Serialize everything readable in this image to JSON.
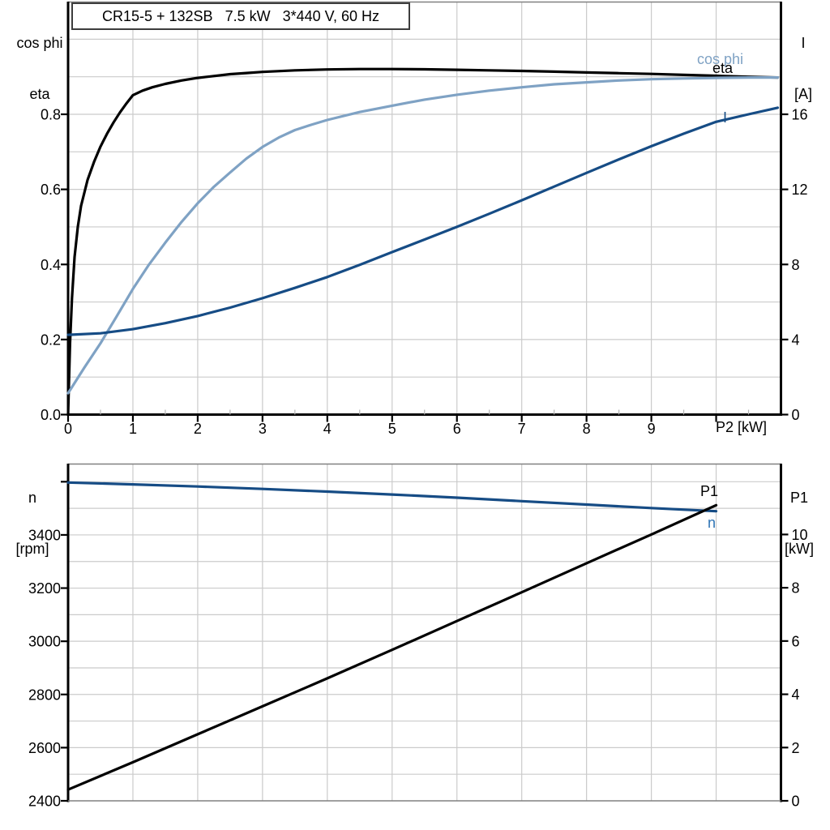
{
  "title_box": {
    "text": "CR15-5 + 132SB   7.5 kW   3*440 V, 60 Hz"
  },
  "colors": {
    "black": "#000000",
    "navy": "#164C85",
    "steel": "#7FA2C4",
    "label_blue": "#2E74B5",
    "grid": "#CBCBCB",
    "border_gray": "#808080"
  },
  "chart_data": [
    {
      "id": "upper",
      "type": "line",
      "title": "CR15-5 + 132SB   7.5 kW   3*440 V, 60 Hz",
      "x_axis": {
        "label": "P2 [kW]",
        "range": [
          0,
          11
        ],
        "tick_values": [
          0,
          1,
          2,
          3,
          4,
          5,
          6,
          7,
          8,
          9,
          10
        ],
        "tick_labels": [
          "0",
          "1",
          "2",
          "3",
          "4",
          "5",
          "6",
          "7",
          "8",
          "9",
          ""
        ],
        "minor_tick_step": 0.5,
        "grid_step": 1
      },
      "y_left": {
        "label_lines": [
          "cos phi",
          "eta"
        ],
        "range": [
          0,
          1.098
        ],
        "tick_values": [
          0,
          0.2,
          0.4,
          0.6,
          0.8
        ],
        "tick_labels": [
          "0.0",
          "0.2",
          "0.4",
          "0.6",
          "0.8"
        ],
        "grid_step": 0.1
      },
      "y_right": {
        "label_lines": [
          "I",
          "[A]"
        ],
        "range": [
          0,
          21.96
        ],
        "tick_values": [
          0,
          4,
          8,
          12,
          16
        ],
        "tick_labels": [
          "0",
          "4",
          "8",
          "12",
          "16"
        ]
      },
      "series": [
        {
          "name": "eta",
          "axis": "left",
          "color_key": "black",
          "width": 3.2,
          "points": [
            [
              0,
              0
            ],
            [
              0.03,
              0.19
            ],
            [
              0.06,
              0.31
            ],
            [
              0.1,
              0.42
            ],
            [
              0.15,
              0.5
            ],
            [
              0.2,
              0.556
            ],
            [
              0.3,
              0.625
            ],
            [
              0.4,
              0.673
            ],
            [
              0.5,
              0.714
            ],
            [
              0.6,
              0.748
            ],
            [
              0.7,
              0.778
            ],
            [
              0.8,
              0.805
            ],
            [
              0.9,
              0.829
            ],
            [
              1.0,
              0.851
            ],
            [
              1.15,
              0.863
            ],
            [
              1.3,
              0.872
            ],
            [
              1.5,
              0.881
            ],
            [
              1.75,
              0.89
            ],
            [
              2.0,
              0.897
            ],
            [
              2.25,
              0.902
            ],
            [
              2.5,
              0.907
            ],
            [
              2.75,
              0.91
            ],
            [
              3.0,
              0.913
            ],
            [
              3.5,
              0.917
            ],
            [
              4.0,
              0.9195
            ],
            [
              4.5,
              0.9205
            ],
            [
              5.0,
              0.9205
            ],
            [
              5.5,
              0.9198
            ],
            [
              6.0,
              0.9185
            ],
            [
              6.5,
              0.917
            ],
            [
              7.0,
              0.9155
            ],
            [
              7.5,
              0.9135
            ],
            [
              8.0,
              0.9115
            ],
            [
              8.5,
              0.9095
            ],
            [
              9.0,
              0.9075
            ],
            [
              9.5,
              0.905
            ],
            [
              10.0,
              0.9025
            ],
            [
              10.5,
              0.9
            ],
            [
              10.95,
              0.898
            ]
          ]
        },
        {
          "name": "cos phi",
          "axis": "left",
          "color_key": "steel",
          "width": 3.2,
          "points": [
            [
              0,
              0.057
            ],
            [
              0.25,
              0.125
            ],
            [
              0.5,
              0.19
            ],
            [
              0.75,
              0.262
            ],
            [
              1.0,
              0.335
            ],
            [
              1.25,
              0.4
            ],
            [
              1.5,
              0.458
            ],
            [
              1.75,
              0.513
            ],
            [
              2.0,
              0.563
            ],
            [
              2.25,
              0.607
            ],
            [
              2.5,
              0.645
            ],
            [
              2.75,
              0.682
            ],
            [
              3.0,
              0.713
            ],
            [
              3.25,
              0.738
            ],
            [
              3.5,
              0.758
            ],
            [
              3.75,
              0.772
            ],
            [
              4.0,
              0.785
            ],
            [
              4.5,
              0.806
            ],
            [
              5.0,
              0.823
            ],
            [
              5.5,
              0.839
            ],
            [
              6.0,
              0.852
            ],
            [
              6.5,
              0.863
            ],
            [
              7.0,
              0.872
            ],
            [
              7.5,
              0.88
            ],
            [
              8.0,
              0.885
            ],
            [
              8.5,
              0.89
            ],
            [
              9.0,
              0.8935
            ],
            [
              9.5,
              0.8955
            ],
            [
              10.0,
              0.897
            ],
            [
              10.5,
              0.898
            ],
            [
              10.95,
              0.898
            ]
          ]
        },
        {
          "name": "I",
          "axis": "right",
          "color_key": "navy",
          "width": 3.2,
          "points": [
            [
              0,
              4.25
            ],
            [
              0.5,
              4.33
            ],
            [
              1.0,
              4.55
            ],
            [
              1.5,
              4.87
            ],
            [
              2.0,
              5.25
            ],
            [
              2.5,
              5.7
            ],
            [
              3.0,
              6.2
            ],
            [
              3.5,
              6.75
            ],
            [
              4.0,
              7.33
            ],
            [
              4.5,
              7.98
            ],
            [
              5.0,
              8.66
            ],
            [
              5.5,
              9.33
            ],
            [
              6.0,
              10.0
            ],
            [
              6.5,
              10.7
            ],
            [
              7.0,
              11.42
            ],
            [
              7.5,
              12.15
            ],
            [
              8.0,
              12.88
            ],
            [
              8.5,
              13.6
            ],
            [
              9.0,
              14.3
            ],
            [
              9.5,
              14.97
            ],
            [
              10.0,
              15.6
            ],
            [
              10.5,
              16.0
            ],
            [
              10.95,
              16.35
            ]
          ]
        }
      ],
      "curve_labels": [
        {
          "text": "cos phi",
          "color_key": "steel"
        },
        {
          "text": "eta",
          "color_key": "black"
        },
        {
          "text": "I",
          "color_key": "navy"
        }
      ]
    },
    {
      "id": "lower",
      "type": "line",
      "x_axis": {
        "label": "",
        "range": [
          0,
          11
        ],
        "tick_values": [],
        "tick_labels": [],
        "grid_step": 1
      },
      "y_left": {
        "label_lines": [
          "n",
          "[rpm]"
        ],
        "range": [
          2400,
          3665
        ],
        "tick_values": [
          2400,
          2600,
          2800,
          3000,
          3200,
          3400,
          3600
        ],
        "tick_labels": [
          "2400",
          "2600",
          "2800",
          "3000",
          "3200",
          "3400",
          ""
        ],
        "grid_step": 100
      },
      "y_right": {
        "label_lines": [
          "P1",
          "[kW]"
        ],
        "range": [
          0,
          12.63
        ],
        "tick_values": [
          0,
          2,
          4,
          6,
          8,
          10
        ],
        "tick_labels": [
          "0",
          "2",
          "4",
          "6",
          "8",
          "10"
        ]
      },
      "series": [
        {
          "name": "n",
          "axis": "left",
          "color_key": "navy",
          "width": 3.2,
          "points": [
            [
              0,
              3597
            ],
            [
              1,
              3590
            ],
            [
              2,
              3582
            ],
            [
              3,
              3573
            ],
            [
              4,
              3563
            ],
            [
              5,
              3552
            ],
            [
              6,
              3540
            ],
            [
              7,
              3527
            ],
            [
              8,
              3514
            ],
            [
              9,
              3501
            ],
            [
              10,
              3489
            ]
          ]
        },
        {
          "name": "P1",
          "axis": "right",
          "color_key": "black",
          "width": 3.2,
          "points": [
            [
              0,
              0.42
            ],
            [
              1,
              1.45
            ],
            [
              2,
              2.5
            ],
            [
              3,
              3.55
            ],
            [
              4,
              4.6
            ],
            [
              5,
              5.67
            ],
            [
              6,
              6.75
            ],
            [
              7,
              7.83
            ],
            [
              8,
              8.92
            ],
            [
              9,
              10.0
            ],
            [
              10,
              11.1
            ]
          ]
        }
      ],
      "curve_labels": [
        {
          "text": "P1",
          "color_key": "black"
        },
        {
          "text": "n",
          "color_key": "label_blue"
        }
      ]
    }
  ]
}
